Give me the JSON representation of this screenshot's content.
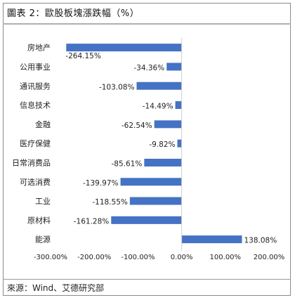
{
  "header": {
    "title": "圖表 2：歐股板塊漲跌幅（%）"
  },
  "footer": {
    "source": "來源：Wind、艾德研究部"
  },
  "colors": {
    "bar": "#4472C4",
    "axis": "#222222"
  },
  "chart_data": {
    "type": "bar",
    "orientation": "horizontal",
    "title": "",
    "xlabel": "",
    "ylabel": "",
    "categories": [
      "房地产",
      "公用事业",
      "通讯服务",
      "信息技术",
      "金融",
      "医疗保健",
      "日常消费品",
      "可选消费",
      "工业",
      "原材料",
      "能源"
    ],
    "values": [
      -264.15,
      -34.36,
      -103.08,
      -14.49,
      -62.54,
      -9.82,
      -85.61,
      -139.97,
      -118.55,
      -161.28,
      138.08
    ],
    "value_labels": [
      "-264.15%",
      "-34.36%",
      "-103.08%",
      "-14.49%",
      "-62.54%",
      "-9.82%",
      "-85.61%",
      "-139.97%",
      "-118.55%",
      "-161.28%",
      "138.08%"
    ],
    "xlim": [
      -300,
      200
    ],
    "xticks": [
      -300,
      -200,
      -100,
      0,
      100,
      200
    ],
    "xtick_labels": [
      "-300.00%",
      "-200.00%",
      "-100.00%",
      "0.00%",
      "100.00%",
      "200.00%"
    ],
    "grid": false,
    "legend": "none"
  }
}
